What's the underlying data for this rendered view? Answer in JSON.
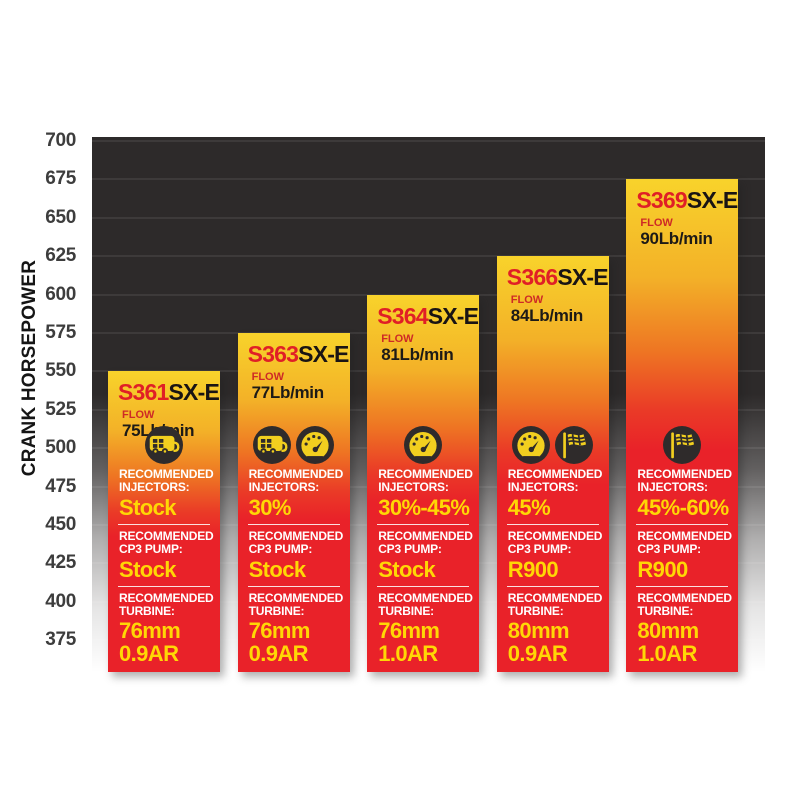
{
  "chart_data": {
    "type": "bar",
    "title": "",
    "xlabel": "",
    "ylabel": "CRANK HORSEPOWER",
    "ylim": [
      375,
      700
    ],
    "yticks": [
      700,
      675,
      650,
      625,
      600,
      575,
      550,
      525,
      500,
      475,
      450,
      425,
      400,
      375
    ],
    "grid": true,
    "legend": false,
    "categories": [
      "S361SX-E",
      "S363SX-E",
      "S364SX-E",
      "S366SX-E",
      "S369SX-E"
    ],
    "values": [
      550,
      575,
      600,
      625,
      675
    ],
    "series": [
      {
        "name": "Crank Horsepower",
        "values": [
          550,
          575,
          600,
          625,
          675
        ]
      }
    ]
  },
  "labels": {
    "flow": "FLOW",
    "injectors": "RECOMMENDED INJECTORS:",
    "cp3": "RECOMMENDED CP3 PUMP:",
    "turbine": "RECOMMENDED TURBINE:"
  },
  "bars": [
    {
      "model_prefix": "S361",
      "model_suffix": "SX-E",
      "flow": "75Lb/min",
      "hp": 550,
      "icons": [
        "rv-icon"
      ],
      "injectors": "Stock",
      "cp3": "Stock",
      "turbine_line1": "76mm",
      "turbine_line2": "0.9AR"
    },
    {
      "model_prefix": "S363",
      "model_suffix": "SX-E",
      "flow": "77Lb/min",
      "hp": 575,
      "icons": [
        "rv-icon",
        "gauge-icon"
      ],
      "injectors": "30%",
      "cp3": "Stock",
      "turbine_line1": "76mm",
      "turbine_line2": "0.9AR"
    },
    {
      "model_prefix": "S364",
      "model_suffix": "SX-E",
      "flow": "81Lb/min",
      "hp": 600,
      "icons": [
        "gauge-icon"
      ],
      "injectors": "30%-45%",
      "cp3": "Stock",
      "turbine_line1": "76mm",
      "turbine_line2": "1.0AR"
    },
    {
      "model_prefix": "S366",
      "model_suffix": "SX-E",
      "flow": "84Lb/min",
      "hp": 625,
      "icons": [
        "gauge-icon",
        "flag-icon"
      ],
      "injectors": "45%",
      "cp3": "R900",
      "turbine_line1": "80mm",
      "turbine_line2": "0.9AR"
    },
    {
      "model_prefix": "S369",
      "model_suffix": "SX-E",
      "flow": "90Lb/min",
      "hp": 675,
      "icons": [
        "flag-icon"
      ],
      "injectors": "45%-60%",
      "cp3": "R900",
      "turbine_line1": "80mm",
      "turbine_line2": "1.0AR"
    }
  ],
  "colors": {
    "plot_background": "#2d2a2a",
    "bar_top_yellow": "#f8d32b",
    "bar_red": "#e92229",
    "model_red": "#e01f26",
    "value_yellow": "#ffd705",
    "label_white": "#ffffff",
    "tick_text": "#3d3d3d",
    "icon_circle": "#2f2b2b"
  }
}
